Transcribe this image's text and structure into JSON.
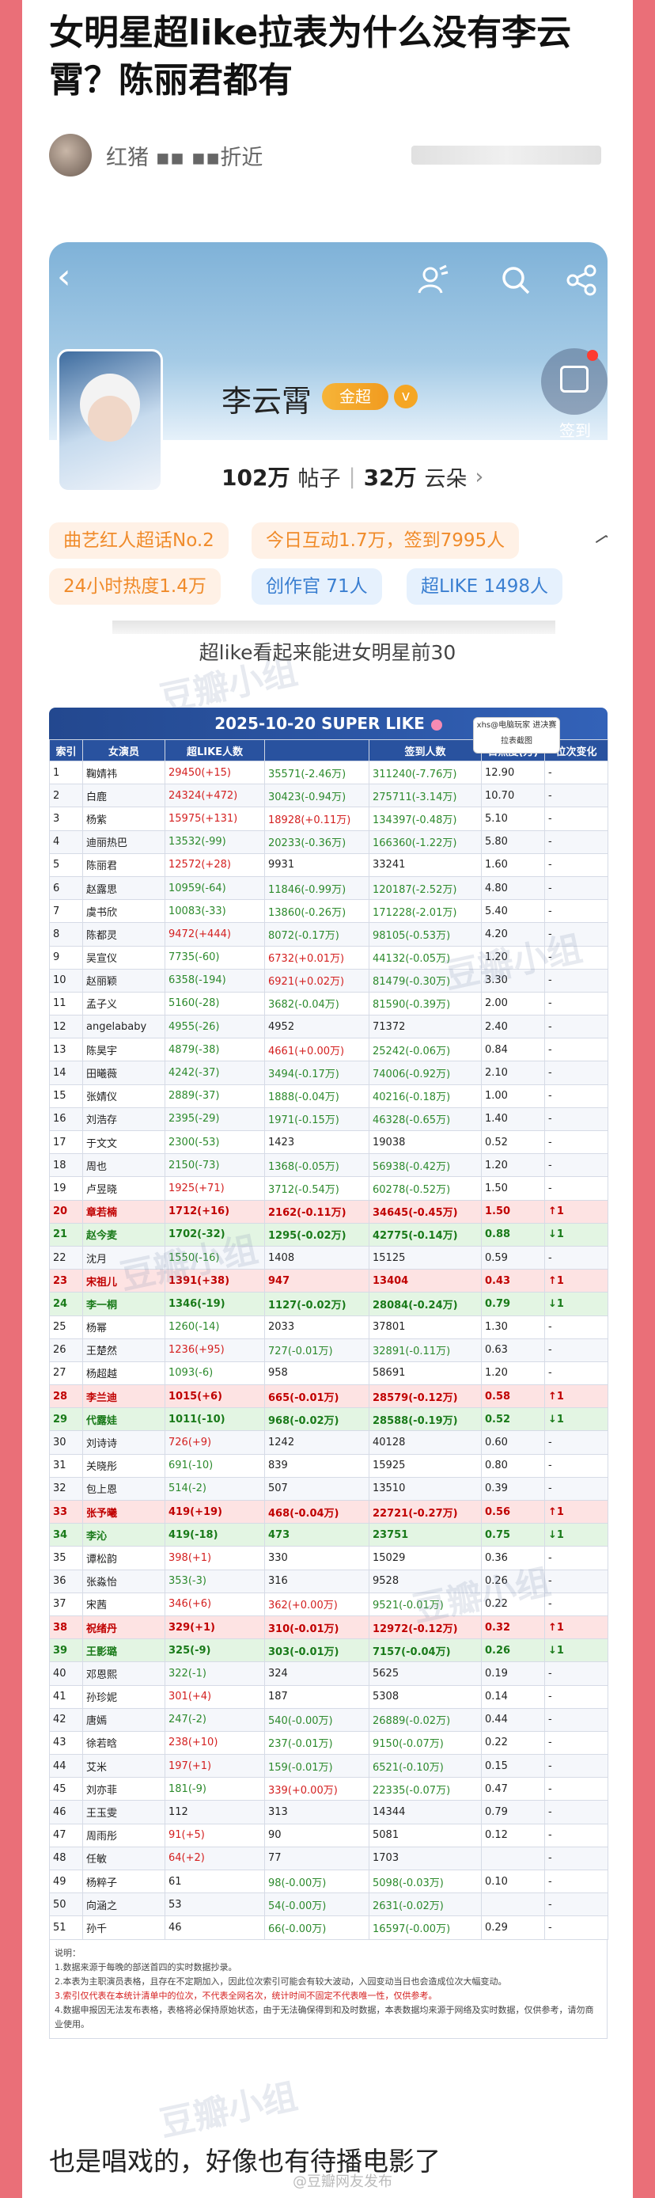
{
  "post": {
    "title": "女明星超like拉表为什么没有李云霄？陈丽君都有",
    "author": "红猪 ▪▪ ▪▪折近",
    "caption": "超like看起来能进女明星前30",
    "footer": "也是唱戏的，好像也有待播电影了",
    "footer_watermark": "@豆瓣网友发布",
    "watermark": "豆瓣小组"
  },
  "topic": {
    "name": "李云霄",
    "badge": "金超",
    "verified_icon": "v-icon",
    "signin_label": "签到",
    "posts_count": "102万",
    "posts_unit": "帖子",
    "fans_count": "32万",
    "fans_unit": "云朵",
    "tags": [
      {
        "label": "曲艺红人超话No.2"
      },
      {
        "label": "今日互动1.7万，签到7995人"
      },
      {
        "label": "24小时热度1.4万"
      },
      {
        "label": "创作官 71人"
      },
      {
        "label": "超LIKE 1498人"
      }
    ]
  },
  "table": {
    "title": "2025-10-20 SUPER LIKE",
    "corner_tag": "xhs@电脑玩家 进决赛拉表截图",
    "columns": [
      "索引",
      "女演员",
      "超LIKE人数",
      "",
      "签到人数",
      "日热度(万)",
      "位次变化"
    ],
    "rows": [
      {
        "i": "1",
        "name": "鞠婧祎",
        "like": "29450(+15)",
        "c3": "35571(-2.46万)",
        "sign": "311240(-7.76万)",
        "heat": "12.90",
        "chg": "-"
      },
      {
        "i": "2",
        "name": "白鹿",
        "like": "24324(+472)",
        "c3": "30423(-0.94万)",
        "sign": "275711(-3.14万)",
        "heat": "10.70",
        "chg": "-"
      },
      {
        "i": "3",
        "name": "杨紫",
        "like": "15975(+131)",
        "c3": "18928(+0.11万)",
        "sign": "134397(-0.48万)",
        "heat": "5.10",
        "chg": "-"
      },
      {
        "i": "4",
        "name": "迪丽热巴",
        "like": "13532(-99)",
        "c3": "20233(-0.36万)",
        "sign": "166360(-1.22万)",
        "heat": "5.80",
        "chg": "-"
      },
      {
        "i": "5",
        "name": "陈丽君",
        "like": "12572(+28)",
        "c3": "9931",
        "sign": "33241",
        "heat": "1.60",
        "chg": "-"
      },
      {
        "i": "6",
        "name": "赵露思",
        "like": "10959(-64)",
        "c3": "11846(-0.99万)",
        "sign": "120187(-2.52万)",
        "heat": "4.80",
        "chg": "-"
      },
      {
        "i": "7",
        "name": "虞书欣",
        "like": "10083(-33)",
        "c3": "13860(-0.26万)",
        "sign": "171228(-2.01万)",
        "heat": "5.40",
        "chg": "-"
      },
      {
        "i": "8",
        "name": "陈都灵",
        "like": "9472(+444)",
        "c3": "8072(-0.17万)",
        "sign": "98105(-0.53万)",
        "heat": "4.20",
        "chg": "-"
      },
      {
        "i": "9",
        "name": "吴宣仪",
        "like": "7735(-60)",
        "c3": "6732(+0.01万)",
        "sign": "44132(-0.05万)",
        "heat": "1.20",
        "chg": "-"
      },
      {
        "i": "10",
        "name": "赵丽颖",
        "like": "6358(-194)",
        "c3": "6921(+0.02万)",
        "sign": "81479(-0.30万)",
        "heat": "3.30",
        "chg": "-"
      },
      {
        "i": "11",
        "name": "孟子义",
        "like": "5160(-28)",
        "c3": "3682(-0.04万)",
        "sign": "81590(-0.39万)",
        "heat": "2.00",
        "chg": "-"
      },
      {
        "i": "12",
        "name": "angelababy",
        "like": "4955(-26)",
        "c3": "4952",
        "sign": "71372",
        "heat": "2.40",
        "chg": "-"
      },
      {
        "i": "13",
        "name": "陈昊宇",
        "like": "4879(-38)",
        "c3": "4661(+0.00万)",
        "sign": "25242(-0.06万)",
        "heat": "0.84",
        "chg": "-"
      },
      {
        "i": "14",
        "name": "田曦薇",
        "like": "4242(-37)",
        "c3": "3494(-0.17万)",
        "sign": "74006(-0.92万)",
        "heat": "2.10",
        "chg": "-"
      },
      {
        "i": "15",
        "name": "张婧仪",
        "like": "2889(-37)",
        "c3": "1888(-0.04万)",
        "sign": "40216(-0.18万)",
        "heat": "1.00",
        "chg": "-"
      },
      {
        "i": "16",
        "name": "刘浩存",
        "like": "2395(-29)",
        "c3": "1971(-0.15万)",
        "sign": "46328(-0.65万)",
        "heat": "1.40",
        "chg": "-"
      },
      {
        "i": "17",
        "name": "于文文",
        "like": "2300(-53)",
        "c3": "1423",
        "sign": "19038",
        "heat": "0.52",
        "chg": "-"
      },
      {
        "i": "18",
        "name": "周也",
        "like": "2150(-73)",
        "c3": "1368(-0.05万)",
        "sign": "56938(-0.42万)",
        "heat": "1.20",
        "chg": "-"
      },
      {
        "i": "19",
        "name": "卢昱晓",
        "like": "1925(+71)",
        "c3": "3712(-0.54万)",
        "sign": "60278(-0.52万)",
        "heat": "1.50",
        "chg": "-"
      },
      {
        "i": "20",
        "name": "章若楠",
        "like": "1712(+16)",
        "c3": "2162(-0.11万)",
        "sign": "34645(-0.45万)",
        "heat": "1.50",
        "chg": "↑1",
        "style": "red"
      },
      {
        "i": "21",
        "name": "赵今麦",
        "like": "1702(-32)",
        "c3": "1295(-0.02万)",
        "sign": "42775(-0.14万)",
        "heat": "0.88",
        "chg": "↓1",
        "style": "green"
      },
      {
        "i": "22",
        "name": "沈月",
        "like": "1550(-16)",
        "c3": "1408",
        "sign": "15125",
        "heat": "0.59",
        "chg": "-"
      },
      {
        "i": "23",
        "name": "宋祖儿",
        "like": "1391(+38)",
        "c3": "947",
        "sign": "13404",
        "heat": "0.43",
        "chg": "↑1",
        "style": "red"
      },
      {
        "i": "24",
        "name": "李一桐",
        "like": "1346(-19)",
        "c3": "1127(-0.02万)",
        "sign": "28084(-0.24万)",
        "heat": "0.79",
        "chg": "↓1",
        "style": "green"
      },
      {
        "i": "25",
        "name": "杨幂",
        "like": "1260(-14)",
        "c3": "2033",
        "sign": "37801",
        "heat": "1.30",
        "chg": "-"
      },
      {
        "i": "26",
        "name": "王楚然",
        "like": "1236(+95)",
        "c3": "727(-0.01万)",
        "sign": "32891(-0.11万)",
        "heat": "0.63",
        "chg": "-"
      },
      {
        "i": "27",
        "name": "杨超越",
        "like": "1093(-6)",
        "c3": "958",
        "sign": "58691",
        "heat": "1.20",
        "chg": "-"
      },
      {
        "i": "28",
        "name": "李兰迪",
        "like": "1015(+6)",
        "c3": "665(-0.01万)",
        "sign": "28579(-0.12万)",
        "heat": "0.58",
        "chg": "↑1",
        "style": "red"
      },
      {
        "i": "29",
        "name": "代露娃",
        "like": "1011(-10)",
        "c3": "968(-0.02万)",
        "sign": "28588(-0.19万)",
        "heat": "0.52",
        "chg": "↓1",
        "style": "green"
      },
      {
        "i": "30",
        "name": "刘诗诗",
        "like": "726(+9)",
        "c3": "1242",
        "sign": "40128",
        "heat": "0.60",
        "chg": "-"
      },
      {
        "i": "31",
        "name": "关晓彤",
        "like": "691(-10)",
        "c3": "839",
        "sign": "15925",
        "heat": "0.80",
        "chg": "-"
      },
      {
        "i": "32",
        "name": "包上恩",
        "like": "514(-2)",
        "c3": "507",
        "sign": "13510",
        "heat": "0.39",
        "chg": "-"
      },
      {
        "i": "33",
        "name": "张予曦",
        "like": "419(+19)",
        "c3": "468(-0.04万)",
        "sign": "22721(-0.27万)",
        "heat": "0.56",
        "chg": "↑1",
        "style": "red"
      },
      {
        "i": "34",
        "name": "李沁",
        "like": "419(-18)",
        "c3": "473",
        "sign": "23751",
        "heat": "0.75",
        "chg": "↓1",
        "style": "green"
      },
      {
        "i": "35",
        "name": "谭松韵",
        "like": "398(+1)",
        "c3": "330",
        "sign": "15029",
        "heat": "0.36",
        "chg": "-"
      },
      {
        "i": "36",
        "name": "张淼怡",
        "like": "353(-3)",
        "c3": "316",
        "sign": "9528",
        "heat": "0.26",
        "chg": "-"
      },
      {
        "i": "37",
        "name": "宋茜",
        "like": "346(+6)",
        "c3": "362(+0.00万)",
        "sign": "9521(-0.01万)",
        "heat": "0.22",
        "chg": "-"
      },
      {
        "i": "38",
        "name": "祝绪丹",
        "like": "329(+1)",
        "c3": "310(-0.01万)",
        "sign": "12972(-0.12万)",
        "heat": "0.32",
        "chg": "↑1",
        "style": "red"
      },
      {
        "i": "39",
        "name": "王影璐",
        "like": "325(-9)",
        "c3": "303(-0.01万)",
        "sign": "7157(-0.04万)",
        "heat": "0.26",
        "chg": "↓1",
        "style": "green"
      },
      {
        "i": "40",
        "name": "邓恩熙",
        "like": "322(-1)",
        "c3": "324",
        "sign": "5625",
        "heat": "0.19",
        "chg": "-"
      },
      {
        "i": "41",
        "name": "孙珍妮",
        "like": "301(+4)",
        "c3": "187",
        "sign": "5308",
        "heat": "0.14",
        "chg": "-"
      },
      {
        "i": "42",
        "name": "唐嫣",
        "like": "247(-2)",
        "c3": "540(-0.00万)",
        "sign": "26889(-0.02万)",
        "heat": "0.44",
        "chg": "-"
      },
      {
        "i": "43",
        "name": "徐若晗",
        "like": "238(+10)",
        "c3": "237(-0.01万)",
        "sign": "9150(-0.07万)",
        "heat": "0.22",
        "chg": "-"
      },
      {
        "i": "44",
        "name": "艾米",
        "like": "197(+1)",
        "c3": "159(-0.01万)",
        "sign": "6521(-0.10万)",
        "heat": "0.15",
        "chg": "-"
      },
      {
        "i": "45",
        "name": "刘亦菲",
        "like": "181(-9)",
        "c3": "339(+0.00万)",
        "sign": "22335(-0.07万)",
        "heat": "0.47",
        "chg": "-"
      },
      {
        "i": "46",
        "name": "王玉雯",
        "like": "112",
        "c3": "313",
        "sign": "14344",
        "heat": "0.79",
        "chg": "-"
      },
      {
        "i": "47",
        "name": "周雨彤",
        "like": "91(+5)",
        "c3": "90",
        "sign": "5081",
        "heat": "0.12",
        "chg": "-"
      },
      {
        "i": "48",
        "name": "任敏",
        "like": "64(+2)",
        "c3": "77",
        "sign": "1703",
        "heat": "",
        "chg": "-"
      },
      {
        "i": "49",
        "name": "杨粹子",
        "like": "61",
        "c3": "98(-0.00万)",
        "sign": "5098(-0.03万)",
        "heat": "0.10",
        "chg": "-"
      },
      {
        "i": "50",
        "name": "向涵之",
        "like": "53",
        "c3": "54(-0.00万)",
        "sign": "2631(-0.02万)",
        "heat": "",
        "chg": "-"
      },
      {
        "i": "51",
        "name": "孙千",
        "like": "46",
        "c3": "66(-0.00万)",
        "sign": "16597(-0.00万)",
        "heat": "0.29",
        "chg": "-"
      }
    ],
    "notes": [
      "说明：",
      "1.数据来源于每晚的部送首四的实时数据抄录。",
      "2.本表为主职演员表格，且存在不定期加入，因此位次索引可能会有较大波动，入园变动当日也会造成位次大幅变动。",
      "3.索引仅代表在本统计清单中的位次，不代表全网名次，统计时间不固定不代表唯一性，仅供参考。",
      "4.数据申报因无法发布表格，表格将必保持原始状态，由于无法确保得到和及时数据，本表数据均来源于网络及实时数据，仅供参考，请勿商业使用。"
    ]
  }
}
